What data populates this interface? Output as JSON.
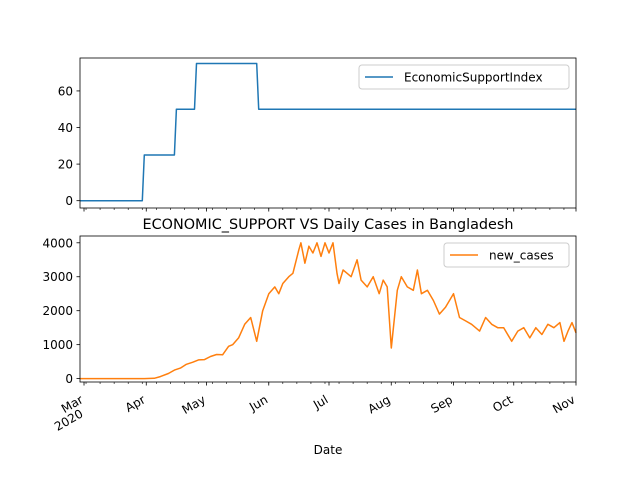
{
  "chart_data": [
    {
      "type": "line",
      "title": "",
      "xlabel": "",
      "ylabel": "",
      "x_range": [
        "2020-02-28",
        "2020-11-01"
      ],
      "ylim": [
        -4,
        78
      ],
      "yticks": [
        0,
        20,
        40,
        60
      ],
      "legend": "top-right",
      "grid": false,
      "series": [
        {
          "name": "EconomicSupportIndex",
          "color": "#1f77b4",
          "step_points": [
            [
              "2020-02-28",
              0
            ],
            [
              "2020-03-30",
              0
            ],
            [
              "2020-03-31",
              25
            ],
            [
              "2020-04-15",
              25
            ],
            [
              "2020-04-16",
              50
            ],
            [
              "2020-04-25",
              50
            ],
            [
              "2020-04-26",
              75
            ],
            [
              "2020-05-26",
              75
            ],
            [
              "2020-05-27",
              50
            ],
            [
              "2020-11-01",
              50
            ]
          ]
        }
      ]
    },
    {
      "type": "line",
      "title": "ECONOMIC_SUPPORT VS Daily Cases in Bangladesh",
      "xlabel": "Date",
      "ylabel": "",
      "x_range": [
        "2020-02-28",
        "2020-11-01"
      ],
      "ylim": [
        -100,
        4200
      ],
      "yticks": [
        0,
        1000,
        2000,
        3000,
        4000
      ],
      "legend": "top-right",
      "grid": false,
      "series": [
        {
          "name": "new_cases",
          "color": "#ff7f0e",
          "points": [
            [
              "2020-02-28",
              0
            ],
            [
              "2020-03-31",
              0
            ],
            [
              "2020-04-05",
              10
            ],
            [
              "2020-04-08",
              60
            ],
            [
              "2020-04-12",
              150
            ],
            [
              "2020-04-15",
              250
            ],
            [
              "2020-04-18",
              310
            ],
            [
              "2020-04-21",
              420
            ],
            [
              "2020-04-24",
              480
            ],
            [
              "2020-04-27",
              550
            ],
            [
              "2020-04-30",
              560
            ],
            [
              "2020-05-03",
              650
            ],
            [
              "2020-05-06",
              710
            ],
            [
              "2020-05-09",
              700
            ],
            [
              "2020-05-12",
              950
            ],
            [
              "2020-05-14",
              1000
            ],
            [
              "2020-05-17",
              1200
            ],
            [
              "2020-05-20",
              1600
            ],
            [
              "2020-05-23",
              1800
            ],
            [
              "2020-05-26",
              1100
            ],
            [
              "2020-05-29",
              2000
            ],
            [
              "2020-06-01",
              2500
            ],
            [
              "2020-06-04",
              2700
            ],
            [
              "2020-06-06",
              2500
            ],
            [
              "2020-06-08",
              2800
            ],
            [
              "2020-06-11",
              3000
            ],
            [
              "2020-06-13",
              3100
            ],
            [
              "2020-06-16",
              3800
            ],
            [
              "2020-06-17",
              4000
            ],
            [
              "2020-06-19",
              3400
            ],
            [
              "2020-06-21",
              3900
            ],
            [
              "2020-06-23",
              3700
            ],
            [
              "2020-06-25",
              4000
            ],
            [
              "2020-06-27",
              3600
            ],
            [
              "2020-06-29",
              4000
            ],
            [
              "2020-07-01",
              3700
            ],
            [
              "2020-07-03",
              4000
            ],
            [
              "2020-07-05",
              3100
            ],
            [
              "2020-07-06",
              2800
            ],
            [
              "2020-07-08",
              3200
            ],
            [
              "2020-07-10",
              3100
            ],
            [
              "2020-07-12",
              3000
            ],
            [
              "2020-07-15",
              3500
            ],
            [
              "2020-07-17",
              2900
            ],
            [
              "2020-07-20",
              2700
            ],
            [
              "2020-07-23",
              3000
            ],
            [
              "2020-07-26",
              2500
            ],
            [
              "2020-07-28",
              2900
            ],
            [
              "2020-07-30",
              2700
            ],
            [
              "2020-08-01",
              900
            ],
            [
              "2020-08-04",
              2600
            ],
            [
              "2020-08-06",
              3000
            ],
            [
              "2020-08-09",
              2700
            ],
            [
              "2020-08-12",
              2600
            ],
            [
              "2020-08-14",
              3200
            ],
            [
              "2020-08-16",
              2500
            ],
            [
              "2020-08-19",
              2600
            ],
            [
              "2020-08-22",
              2300
            ],
            [
              "2020-08-25",
              1900
            ],
            [
              "2020-08-28",
              2100
            ],
            [
              "2020-09-01",
              2500
            ],
            [
              "2020-09-04",
              1800
            ],
            [
              "2020-09-07",
              1700
            ],
            [
              "2020-09-10",
              1600
            ],
            [
              "2020-09-14",
              1400
            ],
            [
              "2020-09-17",
              1800
            ],
            [
              "2020-09-20",
              1600
            ],
            [
              "2020-09-23",
              1500
            ],
            [
              "2020-09-26",
              1500
            ],
            [
              "2020-09-30",
              1100
            ],
            [
              "2020-10-03",
              1400
            ],
            [
              "2020-10-06",
              1500
            ],
            [
              "2020-10-09",
              1200
            ],
            [
              "2020-10-12",
              1500
            ],
            [
              "2020-10-15",
              1300
            ],
            [
              "2020-10-18",
              1600
            ],
            [
              "2020-10-21",
              1500
            ],
            [
              "2020-10-24",
              1650
            ],
            [
              "2020-10-26",
              1100
            ],
            [
              "2020-10-28",
              1400
            ],
            [
              "2020-10-30",
              1650
            ],
            [
              "2020-11-01",
              1350
            ]
          ]
        }
      ]
    }
  ],
  "x_axis": {
    "label": "Date",
    "ticks": [
      {
        "date": "2020-03-01",
        "label": "Mar",
        "sublabel": "2020"
      },
      {
        "date": "2020-04-01",
        "label": "Apr"
      },
      {
        "date": "2020-05-01",
        "label": "May"
      },
      {
        "date": "2020-06-01",
        "label": "Jun"
      },
      {
        "date": "2020-07-01",
        "label": "Jul"
      },
      {
        "date": "2020-08-01",
        "label": "Aug"
      },
      {
        "date": "2020-09-01",
        "label": "Sep"
      },
      {
        "date": "2020-10-01",
        "label": "Oct"
      },
      {
        "date": "2020-11-01",
        "label": "Nov"
      }
    ]
  }
}
